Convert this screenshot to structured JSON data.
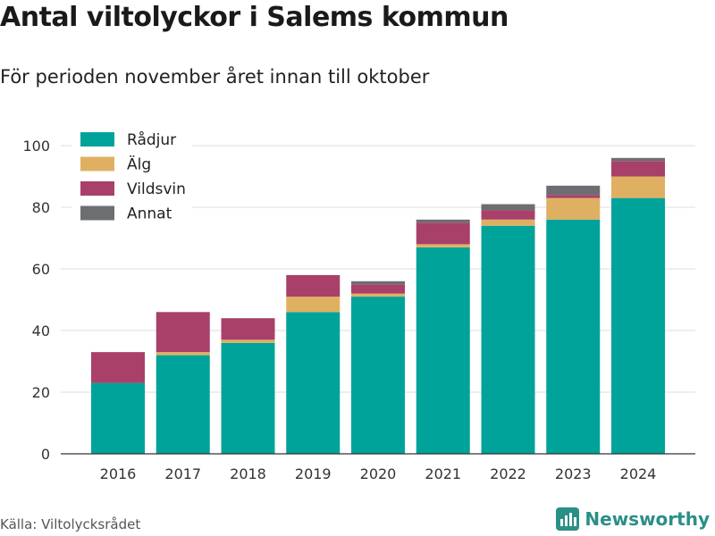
{
  "title": "Antal viltolyckor i Salems kommun",
  "subtitle": "För perioden november året innan till oktober",
  "source": "Källa: Viltolycksrådet",
  "brand": "Newsworthy",
  "chart_data": {
    "type": "bar",
    "stacked": true,
    "categories": [
      "2016",
      "2017",
      "2018",
      "2019",
      "2020",
      "2021",
      "2022",
      "2023",
      "2024"
    ],
    "series": [
      {
        "name": "Rådjur",
        "color": "#00a39a",
        "values": [
          23,
          32,
          36,
          46,
          51,
          67,
          74,
          76,
          83
        ]
      },
      {
        "name": "Älg",
        "color": "#e0b062",
        "values": [
          0,
          1,
          1,
          5,
          1,
          1,
          2,
          7,
          7
        ]
      },
      {
        "name": "Vildsvin",
        "color": "#a8406a",
        "values": [
          10,
          13,
          7,
          7,
          3,
          7,
          3,
          1,
          5
        ]
      },
      {
        "name": "Annat",
        "color": "#6d6e71",
        "values": [
          0,
          0,
          0,
          0,
          1,
          1,
          2,
          3,
          1
        ]
      }
    ],
    "ylim": [
      0,
      100
    ],
    "yticks": [
      0,
      20,
      40,
      60,
      80,
      100
    ],
    "grid": true,
    "legend_position": "top-left"
  }
}
